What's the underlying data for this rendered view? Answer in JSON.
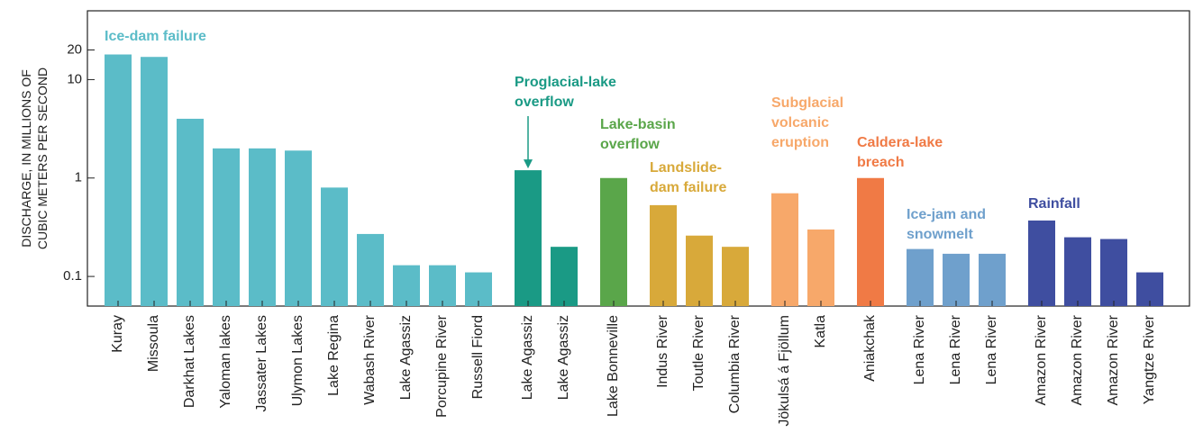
{
  "chart_data": {
    "type": "bar",
    "ylabel": "DISCHARGE, IN MILLIONS OF\nCUBIC METERS PER SECOND",
    "log_scale": true,
    "ylim": [
      0.05,
      50
    ],
    "yticks": [
      0.1,
      1,
      10,
      20
    ],
    "categories": [
      "Kuray",
      "Missoula",
      "Darkhat Lakes",
      "Yaloman lakes",
      "Jassater Lakes",
      "Ulymon Lakes",
      "Lake Regina",
      "Wabash River",
      "Lake Agassiz",
      "Porcupine River",
      "Russell Fiord",
      "Lake Agassiz",
      "Lake Agassiz",
      "Lake Bonneville",
      "Indus River",
      "Toutle River",
      "Columbia River",
      "Jökulsá á Fjöllum",
      "Katla",
      "Aniakchak",
      "Lena River",
      "Lena River",
      "Lena River",
      "Amazon River",
      "Amazon River",
      "Amazon River",
      "Yangtze River"
    ],
    "series": [
      {
        "name": "Ice-dam failure",
        "color": "#5bbcc8",
        "values": [
          18,
          17,
          4.0,
          2.0,
          2.0,
          1.9,
          0.8,
          0.27,
          0.13,
          0.13,
          0.11,
          null,
          null,
          null,
          null,
          null,
          null,
          null,
          null,
          null,
          null,
          null,
          null,
          null,
          null,
          null,
          null
        ]
      },
      {
        "name": "Proglacial-lake\noverflow",
        "color": "#1a9a85",
        "values": [
          null,
          null,
          null,
          null,
          null,
          null,
          null,
          null,
          null,
          null,
          null,
          1.2,
          0.2,
          null,
          null,
          null,
          null,
          null,
          null,
          null,
          null,
          null,
          null,
          null,
          null,
          null,
          null
        ]
      },
      {
        "name": "Lake-basin\noverflow",
        "color": "#5aa64a",
        "values": [
          null,
          null,
          null,
          null,
          null,
          null,
          null,
          null,
          null,
          null,
          null,
          null,
          null,
          1.0,
          null,
          null,
          null,
          null,
          null,
          null,
          null,
          null,
          null,
          null,
          null,
          null,
          null
        ]
      },
      {
        "name": "Landslide-\ndam failure",
        "color": "#d8a93a",
        "values": [
          null,
          null,
          null,
          null,
          null,
          null,
          null,
          null,
          null,
          null,
          null,
          null,
          null,
          null,
          0.53,
          0.26,
          0.2,
          null,
          null,
          null,
          null,
          null,
          null,
          null,
          null,
          null,
          null
        ]
      },
      {
        "name": "Subglacial\nvolcanic\neruption",
        "color": "#f7a86a",
        "values": [
          null,
          null,
          null,
          null,
          null,
          null,
          null,
          null,
          null,
          null,
          null,
          null,
          null,
          null,
          null,
          null,
          null,
          0.7,
          0.3,
          null,
          null,
          null,
          null,
          null,
          null,
          null,
          null
        ]
      },
      {
        "name": "Caldera-lake\nbreach",
        "color": "#f07a45",
        "values": [
          null,
          null,
          null,
          null,
          null,
          null,
          null,
          null,
          null,
          null,
          null,
          null,
          null,
          null,
          null,
          null,
          null,
          null,
          null,
          1.0,
          null,
          null,
          null,
          null,
          null,
          null,
          null
        ]
      },
      {
        "name": "Ice-jam and\nsnowmelt",
        "color": "#6fa0cc",
        "values": [
          null,
          null,
          null,
          null,
          null,
          null,
          null,
          null,
          null,
          null,
          null,
          null,
          null,
          null,
          null,
          null,
          null,
          null,
          null,
          null,
          0.19,
          0.17,
          0.17,
          null,
          null,
          null,
          null
        ]
      },
      {
        "name": "Rainfall",
        "color": "#3f4ea0",
        "values": [
          null,
          null,
          null,
          null,
          null,
          null,
          null,
          null,
          null,
          null,
          null,
          null,
          null,
          null,
          null,
          null,
          null,
          null,
          null,
          null,
          null,
          null,
          null,
          0.37,
          0.25,
          0.24,
          0.11
        ]
      }
    ]
  }
}
